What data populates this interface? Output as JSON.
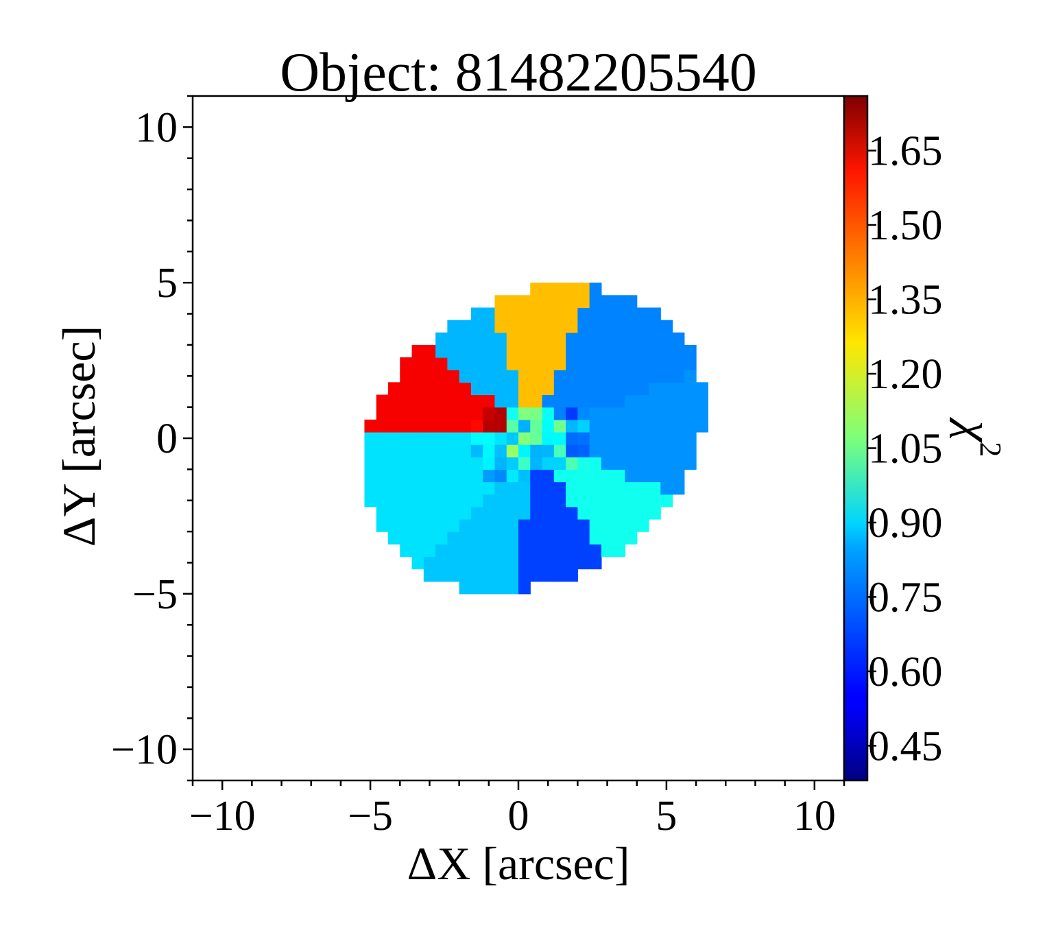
{
  "chart_data": {
    "type": "heatmap",
    "title": "Object: 81482205540",
    "xlabel": "ΔX [arcsec]",
    "ylabel": "ΔY [arcsec]",
    "xlim": [
      -11,
      11
    ],
    "ylim": [
      -11,
      11
    ],
    "x_ticks": [
      -10,
      -5,
      0,
      5,
      10
    ],
    "x_tick_labels": [
      "−10",
      "−5",
      "0",
      "5",
      "10"
    ],
    "y_ticks": [
      10,
      5,
      0,
      -5,
      -10
    ],
    "y_tick_labels": [
      "10",
      "5",
      "0",
      "−5",
      "−10"
    ],
    "colorbar": {
      "label": "χ²",
      "label_base": "χ",
      "label_sup": "2",
      "colormap": "jet",
      "vmin": 0.38,
      "vmax": 1.76,
      "ticks": [
        0.45,
        0.6,
        0.75,
        0.9,
        1.05,
        1.2,
        1.35,
        1.5,
        1.65
      ],
      "tick_labels": [
        "0.45",
        "0.60",
        "0.75",
        "0.90",
        "1.05",
        "1.20",
        "1.35",
        "1.50",
        "1.65"
      ]
    },
    "ellipse": {
      "center": [
        0.5,
        0.0
      ],
      "semi_major": 6.0,
      "semi_minor": 4.6,
      "position_angle_deg": 26
    },
    "bins": [
      {
        "name": "east",
        "angle_from": -20,
        "angle_to": 22,
        "value": 0.75
      },
      {
        "name": "north-east",
        "angle_from": 22,
        "angle_to": 68,
        "value": 0.73
      },
      {
        "name": "north",
        "angle_from": 68,
        "angle_to": 108,
        "value": 1.33
      },
      {
        "name": "north-west",
        "angle_from": 108,
        "angle_to": 140,
        "value": 0.8
      },
      {
        "name": "west-upper",
        "angle_from": 140,
        "angle_to": 176,
        "value": 1.6
      },
      {
        "name": "west-lower",
        "angle_from": 176,
        "angle_to": 227,
        "value": 0.86
      },
      {
        "name": "south-west",
        "angle_from": 227,
        "angle_to": 263,
        "value": 0.82
      },
      {
        "name": "south",
        "angle_from": 263,
        "angle_to": 302,
        "value": 0.64
      },
      {
        "name": "south-east",
        "angle_from": 302,
        "angle_to": 340,
        "value": 0.92
      }
    ],
    "core_value": 0.95
  }
}
